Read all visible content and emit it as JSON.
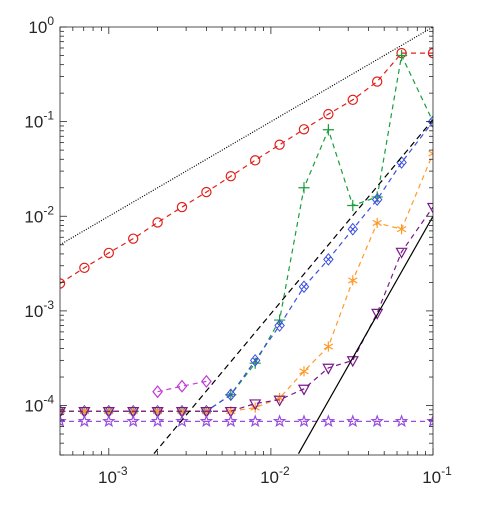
{
  "chart_data": {
    "type": "line",
    "title": "",
    "xlabel": "",
    "ylabel": "",
    "x_scale": "log",
    "y_scale": "log",
    "xlim": [
      0.0005,
      0.1
    ],
    "ylim": [
      3e-05,
      1
    ],
    "grid": false,
    "legend": "none",
    "x_ticks": [
      {
        "base": "10",
        "exp": "-3",
        "value": 0.001
      },
      {
        "base": "10",
        "exp": "-2",
        "value": 0.01
      },
      {
        "base": "10",
        "exp": "-1",
        "value": 0.1
      }
    ],
    "y_ticks": [
      {
        "base": "10",
        "exp": "-4",
        "value": 0.0001
      },
      {
        "base": "10",
        "exp": "-3",
        "value": 0.001
      },
      {
        "base": "10",
        "exp": "-2",
        "value": 0.01
      },
      {
        "base": "10",
        "exp": "-1",
        "value": 0.1
      },
      {
        "base": "10",
        "exp": "0",
        "value": 1
      }
    ],
    "series": [
      {
        "marker": "circle",
        "color": "#e0201a",
        "dash": "5,4",
        "x": [
          0.0005,
          0.000707,
          0.001,
          0.001414,
          0.002,
          0.002828,
          0.004,
          0.005657,
          0.008,
          0.011314,
          0.016,
          0.022627,
          0.032,
          0.045255,
          0.064,
          0.1
        ],
        "y": [
          0.00195,
          0.00285,
          0.0041,
          0.0058,
          0.0086,
          0.0125,
          0.018,
          0.0265,
          0.039,
          0.057,
          0.083,
          0.12,
          0.17,
          0.265,
          0.53,
          0.53
        ]
      },
      {
        "marker": "plus",
        "color": "#1a9e3c",
        "dash": "5,4",
        "x": [
          0.0005,
          0.000707,
          0.001,
          0.001414,
          0.002,
          0.002828,
          0.004,
          0.005657,
          0.008,
          0.011314,
          0.016,
          0.022627,
          0.032,
          0.045255,
          0.064,
          0.1
        ],
        "y": [
          8.7e-05,
          8.7e-05,
          8.7e-05,
          8.7e-05,
          8.7e-05,
          8.7e-05,
          8.7e-05,
          0.00013,
          0.00028,
          0.0008,
          0.02,
          0.082,
          0.013,
          0.016,
          0.5,
          0.1
        ]
      },
      {
        "marker": "diamond",
        "color": "#3b4fe0",
        "dash": "5,4",
        "x": [
          0.0005,
          0.000707,
          0.001,
          0.001414,
          0.002,
          0.002828,
          0.004,
          0.005657,
          0.008,
          0.011314,
          0.016,
          0.022627,
          0.032,
          0.045255,
          0.064,
          0.1
        ],
        "y": [
          8.7e-05,
          8.7e-05,
          8.7e-05,
          8.7e-05,
          8.7e-05,
          8.7e-05,
          8.7e-05,
          0.00013,
          0.0003,
          0.0007,
          0.0018,
          0.0035,
          0.0073,
          0.015,
          0.037,
          0.1
        ]
      },
      {
        "marker": "star6",
        "color": "#ff9a2a",
        "dash": "5,4",
        "x": [
          0.0005,
          0.000707,
          0.001,
          0.001414,
          0.002,
          0.002828,
          0.004,
          0.005657,
          0.008,
          0.011314,
          0.016,
          0.022627,
          0.032,
          0.045255,
          0.064,
          0.1
        ],
        "y": [
          8.7e-05,
          8.7e-05,
          8.7e-05,
          8.7e-05,
          8.7e-05,
          8.7e-05,
          8.7e-05,
          8.7e-05,
          9.5e-05,
          0.00012,
          0.00023,
          0.00042,
          0.0021,
          0.0085,
          0.0073,
          0.046
        ]
      },
      {
        "marker": "triangle-down",
        "color": "#7a1a8a",
        "dash": "5,4",
        "x": [
          0.0005,
          0.000707,
          0.001,
          0.001414,
          0.002,
          0.002828,
          0.004,
          0.005657,
          0.008,
          0.011314,
          0.016,
          0.022627,
          0.032,
          0.045255,
          0.064,
          0.1
        ],
        "y": [
          8.7e-05,
          8.7e-05,
          8.7e-05,
          8.7e-05,
          8.7e-05,
          8.7e-05,
          8.7e-05,
          8.7e-05,
          0.000105,
          0.000115,
          0.00015,
          0.00025,
          0.0003,
          0.00095,
          0.0042,
          0.0125
        ]
      },
      {
        "marker": "diamond-open",
        "color": "#c23ad6",
        "dash": "5,4",
        "x": [
          0.002,
          0.002828,
          0.004
        ],
        "y": [
          0.00014,
          0.00016,
          0.00018
        ]
      },
      {
        "marker": "pentagram",
        "color": "#9b4de0",
        "dash": "5,4",
        "x": [
          0.0005,
          0.000707,
          0.001,
          0.001414,
          0.002,
          0.002828,
          0.004,
          0.005657,
          0.008,
          0.011314,
          0.016,
          0.022627,
          0.032,
          0.045255,
          0.064,
          0.1
        ],
        "y": [
          6.8e-05,
          6.8e-05,
          6.8e-05,
          6.8e-05,
          6.8e-05,
          6.8e-05,
          6.8e-05,
          6.8e-05,
          6.8e-05,
          6.8e-05,
          6.8e-05,
          6.8e-05,
          6.8e-05,
          6.8e-05,
          6.8e-05,
          6.8e-05
        ]
      },
      {
        "marker": "none",
        "color": "#000000",
        "dash": "1,1.5",
        "x": [
          0.0005,
          0.1
        ],
        "y": [
          0.005,
          1
        ]
      },
      {
        "marker": "none",
        "color": "#000000",
        "dash": "6,4",
        "x": [
          0.0019,
          0.1
        ],
        "y": [
          3.1e-05,
          0.105
        ]
      },
      {
        "marker": "none",
        "color": "#000000",
        "dash": "",
        "x": [
          0.0148,
          0.1
        ],
        "y": [
          3.1e-05,
          0.01
        ]
      }
    ]
  }
}
